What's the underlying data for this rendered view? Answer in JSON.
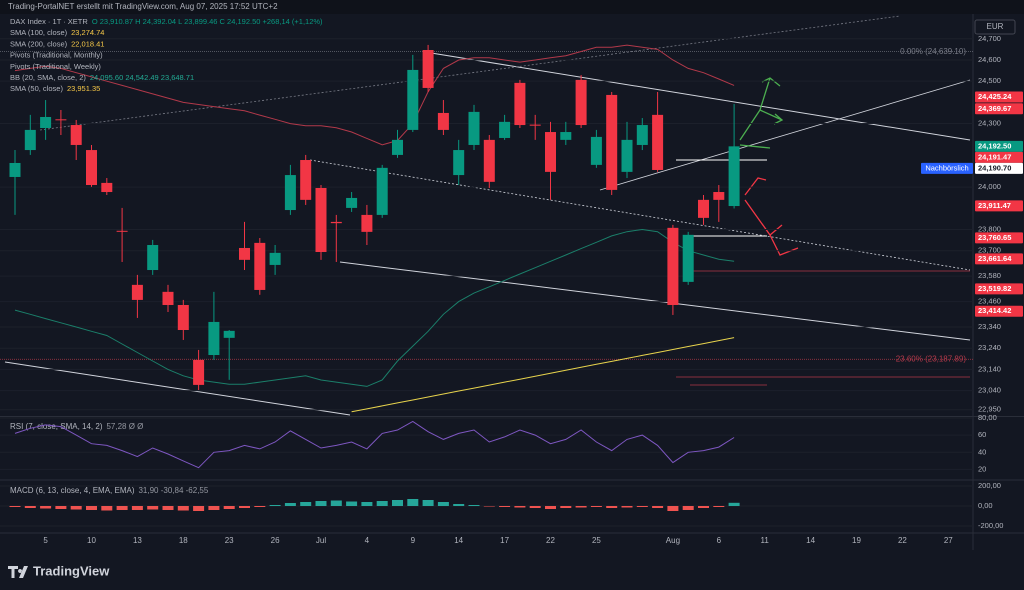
{
  "header": "Trading-PortalNET erstellt mit TradingView.com, Aug 07, 2025 17:52 UTC+2",
  "currency": "EUR",
  "logo": "TradingView",
  "legend": [
    {
      "text": "DAX Index · 1T · XETR",
      "value": "O 23,910.87  H 24,392.04  L 23,899.46  C 24,192.50  +268,14 (+1,12%)",
      "color": "#089981"
    },
    {
      "text": "SMA (100, close)",
      "value": "23,274.74",
      "color": "#f7c948"
    },
    {
      "text": "SMA (200, close)",
      "value": "22,018.41",
      "color": "#f7c948"
    },
    {
      "text": "Pivots (Traditional, Monthly)"
    },
    {
      "text": "Pivots (Traditional, Weekly)"
    },
    {
      "text": "BB (20, SMA, close, 2)",
      "value": "24,095.60  24,542.49  23,648.71",
      "color": "#22ab94"
    },
    {
      "text": "SMA (50, close)",
      "value": "23,951.35",
      "color": "#f7c948"
    }
  ],
  "chart_data": [
    {
      "type": "candlestick",
      "categories": [
        null,
        null,
        "5",
        null,
        null,
        "10",
        null,
        null,
        "13",
        null,
        null,
        "18",
        null,
        null,
        "23",
        null,
        null,
        "26",
        null,
        null,
        "Jul",
        null,
        null,
        "4",
        null,
        null,
        "9",
        null,
        null,
        "14",
        null,
        null,
        "17",
        null,
        null,
        "22",
        null,
        null,
        "25",
        null,
        null,
        null,
        null,
        "Aug",
        null,
        null,
        "6",
        null,
        null,
        "11",
        null,
        null,
        "14",
        null,
        null,
        "19",
        null,
        null,
        "22",
        null,
        null,
        "27",
        null
      ],
      "open": [
        24048,
        24175,
        24279,
        24320,
        24293,
        24175,
        24020,
        23794,
        23539,
        23609,
        23506,
        23444,
        23185,
        23208,
        23289,
        23713,
        23737,
        23633,
        23892,
        24128,
        23996,
        23836,
        23902,
        23869,
        23869,
        24152,
        24270,
        24647,
        24350,
        24057,
        24199,
        24223,
        24232,
        24492,
        24295,
        24260,
        24223,
        24506,
        24105,
        24435,
        24072,
        24199,
        24341,
        23808,
        23553,
        23940,
        23977,
        23910.87,
        null,
        null,
        null,
        null,
        null,
        null,
        null,
        null,
        null,
        null,
        null,
        null,
        null,
        null,
        null
      ],
      "high": [
        24175,
        24341,
        24411,
        24364,
        24317,
        24199,
        24043,
        23902,
        23586,
        23751,
        23539,
        23468,
        23232,
        23506,
        23326,
        23836,
        23760,
        23727,
        24105,
        24152,
        24010,
        23869,
        23977,
        23916,
        24105,
        24270,
        24624,
        24671,
        24411,
        24223,
        24388,
        24246,
        24341,
        24506,
        24341,
        24308,
        24308,
        24529,
        24270,
        24449,
        24308,
        24326,
        24449,
        23822,
        23789,
        23963,
        24010,
        24392.04,
        null,
        null,
        null,
        null,
        null,
        null,
        null,
        null,
        null,
        null,
        null,
        null,
        null,
        null,
        null
      ],
      "low": [
        23869,
        24152,
        24223,
        24246,
        24128,
        24001,
        23963,
        23647,
        23383,
        23586,
        23411,
        23279,
        23043,
        23185,
        23091,
        23609,
        23492,
        23586,
        23869,
        23916,
        23657,
        23647,
        23883,
        23727,
        23855,
        24138,
        24260,
        24449,
        24246,
        24010,
        24175,
        23996,
        24223,
        24279,
        24223,
        23940,
        24199,
        24279,
        24091,
        23963,
        24043,
        24175,
        24072,
        23397,
        23539,
        23822,
        23836,
        23899.46,
        null,
        null,
        null,
        null,
        null,
        null,
        null,
        null,
        null,
        null,
        null,
        null,
        null,
        null,
        null
      ],
      "close": [
        24114,
        24270,
        24331,
        24316,
        24199,
        24010,
        23977,
        23790,
        23468,
        23727,
        23444,
        23326,
        23067,
        23364,
        23322,
        23657,
        23515,
        23690,
        24057,
        23940,
        23694,
        23830,
        23949,
        23789,
        24091,
        24223,
        24553,
        24468,
        24270,
        24175,
        24355,
        24025,
        24308,
        24293,
        24290,
        24072,
        24260,
        24293,
        24237,
        23987,
        24223,
        24293,
        24081,
        23444,
        23775,
        23855,
        23940,
        24192.5,
        null,
        null,
        null,
        null,
        null,
        null,
        null,
        null,
        null,
        null,
        null,
        null,
        null,
        null,
        null
      ],
      "up_color": "#089981",
      "down_color": "#f23645",
      "overlays": [
        {
          "color": "#b2394a",
          "values": [
            24550,
            24560,
            24570,
            24560,
            24540,
            24520,
            24500,
            24480,
            24460,
            24440,
            24420,
            24400,
            24390,
            24380,
            24370,
            24360,
            24340,
            24320,
            24300,
            24290,
            24290,
            24280,
            24260,
            24230,
            24200,
            24220,
            24300,
            24450,
            24560,
            24600,
            24610,
            24610,
            24600,
            24590,
            24600,
            24610,
            24620,
            24640,
            24660,
            24660,
            24670,
            24660,
            24650,
            24600,
            24560,
            24540,
            24510,
            24480,
            null,
            null,
            null,
            null,
            null,
            null,
            null,
            null,
            null,
            null,
            null,
            null,
            null,
            null,
            null
          ]
        },
        {
          "color": "#1b7f6a",
          "values": [
            23420,
            23400,
            23380,
            23360,
            23340,
            23320,
            23300,
            23260,
            23220,
            23180,
            23140,
            23110,
            23090,
            23080,
            23070,
            23070,
            23080,
            23090,
            23100,
            23110,
            23090,
            23080,
            23070,
            23060,
            23090,
            23180,
            23250,
            23320,
            23400,
            23460,
            23500,
            23530,
            23560,
            23590,
            23620,
            23650,
            23680,
            23710,
            23740,
            23770,
            23790,
            23800,
            23790,
            23740,
            23700,
            23680,
            23660,
            23650,
            null,
            null,
            null,
            null,
            null,
            null,
            null,
            null,
            null,
            null,
            null,
            null,
            null,
            null,
            null
          ]
        },
        {
          "color": "#e8d44d",
          "values": [
            null,
            null,
            null,
            null,
            null,
            null,
            null,
            null,
            null,
            null,
            null,
            null,
            null,
            null,
            null,
            null,
            null,
            null,
            null,
            null,
            null,
            null,
            22940,
            22954,
            22968,
            22982,
            22996,
            23010,
            23024,
            23038,
            23052,
            23066,
            23080,
            23094,
            23108,
            23122,
            23136,
            23150,
            23164,
            23178,
            23192,
            23206,
            23220,
            23234,
            23248,
            23262,
            23276,
            23290,
            null,
            null,
            null,
            null,
            null,
            null,
            null,
            null,
            null,
            null,
            null,
            null,
            null,
            null,
            null
          ]
        }
      ],
      "ylim": [
        22925,
        24798
      ],
      "yticks": [
        {
          "value": 24700,
          "label": "24,700"
        },
        {
          "value": 24600,
          "label": "24,600"
        },
        {
          "value": 24500,
          "label": "24,500"
        },
        {
          "value": 24300,
          "label": "24,300"
        },
        {
          "value": 24000,
          "label": "24,000"
        },
        {
          "value": 23800,
          "label": "23,800"
        },
        {
          "value": 23700,
          "label": "23,700"
        },
        {
          "value": 23580,
          "label": "23,580"
        },
        {
          "value": 23460,
          "label": "23,460"
        },
        {
          "value": 23340,
          "label": "23,340"
        },
        {
          "value": 23240,
          "label": "23,240"
        },
        {
          "value": 23140,
          "label": "23,140"
        },
        {
          "value": 23040,
          "label": "23,040"
        },
        {
          "value": 22950,
          "label": "22,950"
        }
      ],
      "fib_levels": [
        {
          "value": 24639.1,
          "label": "0.00% (24,639.10)",
          "color": "#787b86"
        },
        {
          "value": 23187.89,
          "label": "23.60% (23,187.89)",
          "color": "#b2394a"
        }
      ],
      "price_labels": [
        {
          "value": 24425.24,
          "label": "24,425.24",
          "color": "#f23645"
        },
        {
          "value": 24369.67,
          "label": "24,369.67",
          "color": "#f23645"
        },
        {
          "value": 24192.5,
          "label": "24,192.50",
          "color": "#089981"
        },
        {
          "value": 24191.47,
          "label": "24,191.47",
          "color": "#f23645"
        },
        {
          "value": 24190.7,
          "label": "24,190.70",
          "color": "#ffffff",
          "tag": "Nachbörslich"
        },
        {
          "value": 23911.47,
          "label": "23,911.47",
          "color": "#f23645"
        },
        {
          "value": 23760.65,
          "label": "23,760.65",
          "color": "#f23645"
        },
        {
          "value": 23661.64,
          "label": "23,661.64",
          "color": "#f23645"
        },
        {
          "value": 23519.82,
          "label": "23,519.82",
          "color": "#f23645"
        },
        {
          "value": 23414.42,
          "label": "23,414.42",
          "color": "#f23645"
        }
      ]
    },
    {
      "type": "line",
      "title": "RSI (7, close, SMA, 14, 2)",
      "value_text": "57,28  Ø  Ø",
      "color": "#7e57c2",
      "values": [
        62,
        68,
        72,
        70,
        60,
        50,
        48,
        42,
        35,
        45,
        38,
        30,
        22,
        40,
        42,
        48,
        44,
        52,
        65,
        55,
        45,
        48,
        52,
        44,
        62,
        66,
        76,
        64,
        55,
        62,
        66,
        52,
        58,
        66,
        60,
        50,
        55,
        66,
        52,
        42,
        55,
        60,
        48,
        28,
        40,
        42,
        46,
        57.28
      ],
      "ylim": [
        10,
        80
      ],
      "yticks": [
        {
          "value": 80,
          "label": "80,00"
        },
        60,
        40,
        20
      ]
    },
    {
      "type": "histogram",
      "title": "MACD (6, 13, close, 4, EMA, EMA)",
      "value_text": "31,90  -30,84  -62,55",
      "up_color": "#26a69a",
      "down_color": "#ef5350",
      "values": [
        -10,
        -20,
        -25,
        -30,
        -35,
        -40,
        -45,
        -40,
        -40,
        -35,
        -40,
        -45,
        -50,
        -40,
        -30,
        -20,
        -10,
        10,
        30,
        40,
        50,
        55,
        45,
        40,
        50,
        60,
        70,
        60,
        40,
        20,
        10,
        -5,
        -10,
        -15,
        -20,
        -30,
        -20,
        -15,
        -10,
        -20,
        -15,
        -10,
        -20,
        -50,
        -40,
        -20,
        -10,
        31.9
      ],
      "ylim": [
        -260,
        240
      ],
      "yticks": [
        {
          "value": 200,
          "label": "200,00"
        },
        {
          "value": 0,
          "label": "0,00"
        },
        {
          "value": -200,
          "label": "-200,00"
        }
      ]
    }
  ]
}
